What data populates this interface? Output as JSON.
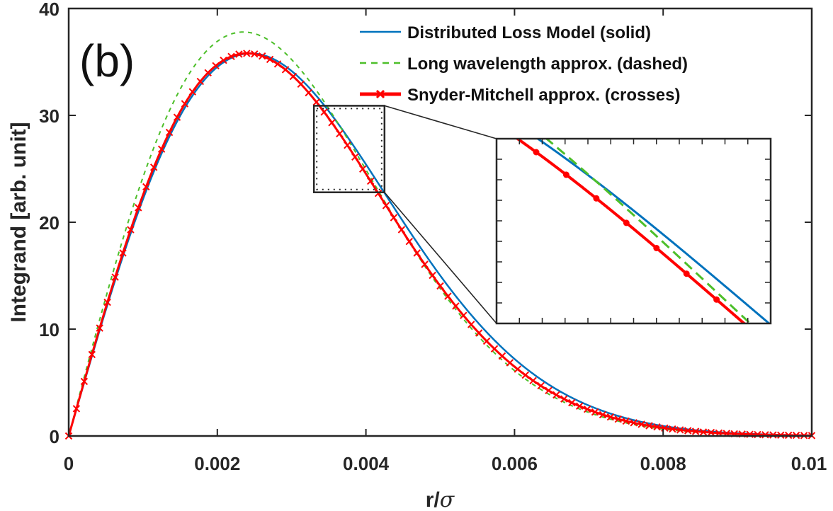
{
  "chart_data": {
    "type": "line",
    "panel_label": "(b)",
    "xlabel": "r/",
    "xlabel_symbol": "σ",
    "ylabel": "Integrand [arb. unit]",
    "xlim": [
      0,
      0.01
    ],
    "ylim": [
      0,
      40
    ],
    "x_ticks": [
      0,
      0.002,
      0.004,
      0.006,
      0.008,
      0.01
    ],
    "x_tick_labels": [
      "0",
      "0.002",
      "0.004",
      "0.006",
      "0.008",
      "0.01"
    ],
    "y_ticks": [
      0,
      10,
      20,
      30,
      40
    ],
    "y_tick_labels": [
      "0",
      "10",
      "20",
      "30",
      "40"
    ],
    "legend_position": "top-right",
    "series": [
      {
        "name": "Distributed Loss Model (solid)",
        "color": "#0072BD",
        "style": "solid",
        "model": {
          "type": "rayleigh",
          "peak_x": 0.00245,
          "peak_y": 35.8
        }
      },
      {
        "name": "Long wavelength approx. (dashed)",
        "color": "#4DBF2A",
        "style": "dashed",
        "model": {
          "type": "rayleigh",
          "peak_x": 0.00235,
          "peak_y": 37.8
        }
      },
      {
        "name": "Snyder-Mitchell approx. (crosses)",
        "color": "#FF0000",
        "style": "solid-crosses",
        "model": {
          "type": "rayleigh",
          "peak_x": 0.0024,
          "peak_y": 35.8
        }
      }
    ],
    "inset": {
      "source_xlim": [
        0.0033,
        0.00425
      ],
      "source_ylim": [
        22.8,
        30.9
      ]
    }
  }
}
